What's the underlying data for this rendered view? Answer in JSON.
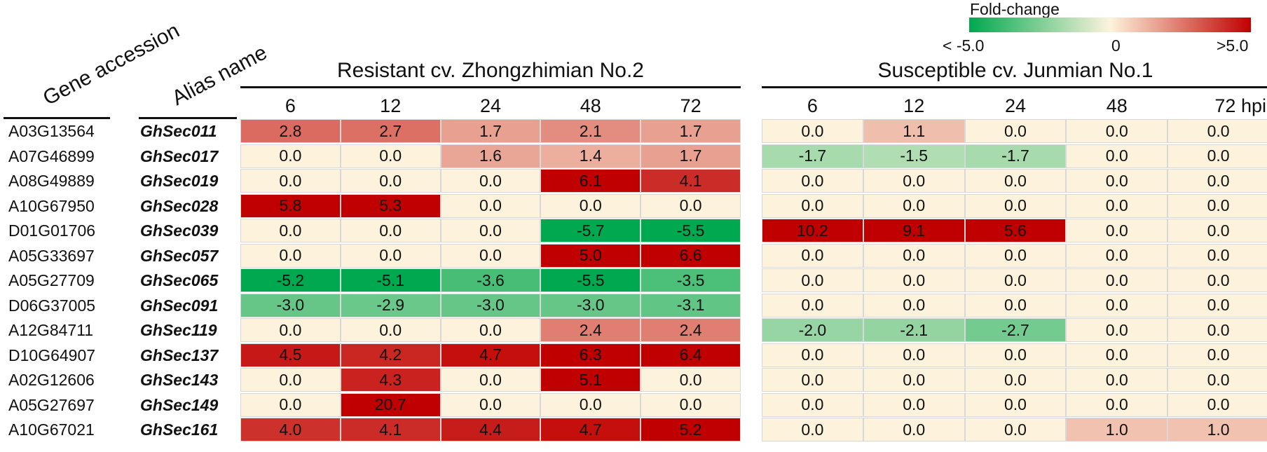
{
  "chart_data": {
    "type": "heatmap",
    "row_headers": {
      "gene": "Gene accession",
      "alias": "Alias name"
    },
    "groups": [
      {
        "title": "Resistant cv. Zhongzhimian No.2",
        "timepoints": [
          "6",
          "12",
          "24",
          "48",
          "72"
        ]
      },
      {
        "title": "Susceptible cv. Junmian No.1",
        "timepoints": [
          "6",
          "12",
          "24",
          "48",
          "72 hpi"
        ]
      }
    ],
    "rows": [
      {
        "gene": "A03G13564",
        "alias": "GhSec011",
        "values": [
          2.8,
          2.7,
          1.7,
          2.1,
          1.7,
          0.0,
          1.1,
          0.0,
          0.0,
          0.0
        ]
      },
      {
        "gene": "A07G46899",
        "alias": "GhSec017",
        "values": [
          0.0,
          0.0,
          1.6,
          1.4,
          1.7,
          -1.7,
          -1.5,
          -1.7,
          0.0,
          0.0
        ]
      },
      {
        "gene": "A08G49889",
        "alias": "GhSec019",
        "values": [
          0.0,
          0.0,
          0.0,
          6.1,
          4.1,
          0.0,
          0.0,
          0.0,
          0.0,
          0.0
        ]
      },
      {
        "gene": "A10G67950",
        "alias": "GhSec028",
        "values": [
          5.8,
          5.3,
          0.0,
          0.0,
          0.0,
          0.0,
          0.0,
          0.0,
          0.0,
          0.0
        ]
      },
      {
        "gene": "D01G01706",
        "alias": "GhSec039",
        "values": [
          0.0,
          0.0,
          0.0,
          -5.7,
          -5.5,
          10.2,
          9.1,
          5.6,
          0.0,
          0.0
        ]
      },
      {
        "gene": "A05G33697",
        "alias": "GhSec057",
        "values": [
          0.0,
          0.0,
          0.0,
          5.0,
          6.6,
          0.0,
          0.0,
          0.0,
          0.0,
          0.0
        ]
      },
      {
        "gene": "A05G27709",
        "alias": "GhSec065",
        "values": [
          -5.2,
          -5.1,
          -3.6,
          -5.5,
          -3.5,
          0.0,
          0.0,
          0.0,
          0.0,
          0.0
        ]
      },
      {
        "gene": "D06G37005",
        "alias": "GhSec091",
        "values": [
          -3.0,
          -2.9,
          -3.0,
          -3.0,
          -3.1,
          0.0,
          0.0,
          0.0,
          0.0,
          0.0
        ]
      },
      {
        "gene": "A12G84711",
        "alias": "GhSec119",
        "values": [
          0.0,
          0.0,
          0.0,
          2.4,
          2.4,
          -2.0,
          -2.1,
          -2.7,
          0.0,
          0.0
        ]
      },
      {
        "gene": "D10G64907",
        "alias": "GhSec137",
        "values": [
          4.5,
          4.2,
          4.7,
          6.3,
          6.4,
          0.0,
          0.0,
          0.0,
          0.0,
          0.0
        ]
      },
      {
        "gene": "A02G12606",
        "alias": "GhSec143",
        "values": [
          0.0,
          4.3,
          0.0,
          5.1,
          0.0,
          0.0,
          0.0,
          0.0,
          0.0,
          0.0
        ]
      },
      {
        "gene": "A05G27697",
        "alias": "GhSec149",
        "values": [
          0.0,
          20.7,
          0.0,
          0.0,
          0.0,
          0.0,
          0.0,
          0.0,
          0.0,
          0.0
        ]
      },
      {
        "gene": "A10G67021",
        "alias": "GhSec161",
        "values": [
          4.0,
          4.1,
          4.4,
          4.7,
          5.2,
          0.0,
          0.0,
          0.0,
          1.0,
          1.0
        ]
      }
    ],
    "legend": {
      "title": "Fold-change",
      "min_label": "< -5.0",
      "mid_label": "0",
      "max_label": ">5.0",
      "min": -5.0,
      "max": 5.0
    },
    "colors": {
      "low": "#00a84f",
      "mid": "#fdf3dc",
      "high": "#c00000"
    }
  }
}
